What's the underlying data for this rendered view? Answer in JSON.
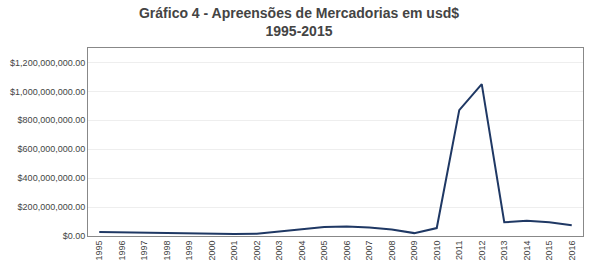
{
  "chart_data": {
    "type": "line",
    "title": "Gráfico 4 - Apreensões de Mercadorias em usd$",
    "subtitle": "1995-2015",
    "x": [
      1995,
      1996,
      1997,
      1998,
      1999,
      2000,
      2001,
      2002,
      2003,
      2004,
      2005,
      2006,
      2007,
      2008,
      2009,
      2010,
      2011,
      2012,
      2013,
      2014,
      2015,
      2016
    ],
    "values": [
      28000000,
      25000000,
      22000000,
      18000000,
      14000000,
      11000000,
      13000000,
      16000000,
      32000000,
      48000000,
      62000000,
      65000000,
      58000000,
      45000000,
      20000000,
      55000000,
      870000000,
      1050000000,
      95000000,
      105000000,
      95000000,
      75000000
    ],
    "color": "#1F3864",
    "xlim": [
      1994.5,
      2016.5
    ],
    "xticks": [
      1995,
      1996,
      1997,
      1998,
      1999,
      2000,
      2001,
      2002,
      2003,
      2004,
      2005,
      2006,
      2007,
      2008,
      2009,
      2010,
      2011,
      2012,
      2013,
      2014,
      2015,
      2016
    ],
    "ylim": [
      0,
      1300000000
    ],
    "yticks": [
      {
        "value": 0,
        "label": "$0.00"
      },
      {
        "value": 200000000,
        "label": "$200,000,000.00"
      },
      {
        "value": 400000000,
        "label": "$400,000,000.00"
      },
      {
        "value": 600000000,
        "label": "$600,000,000.00"
      },
      {
        "value": 800000000,
        "label": "$800,000,000.00"
      },
      {
        "value": 1000000000,
        "label": "$1,000,000,000.00"
      },
      {
        "value": 1200000000,
        "label": "$1,200,000,000.00"
      }
    ],
    "grid": true
  }
}
